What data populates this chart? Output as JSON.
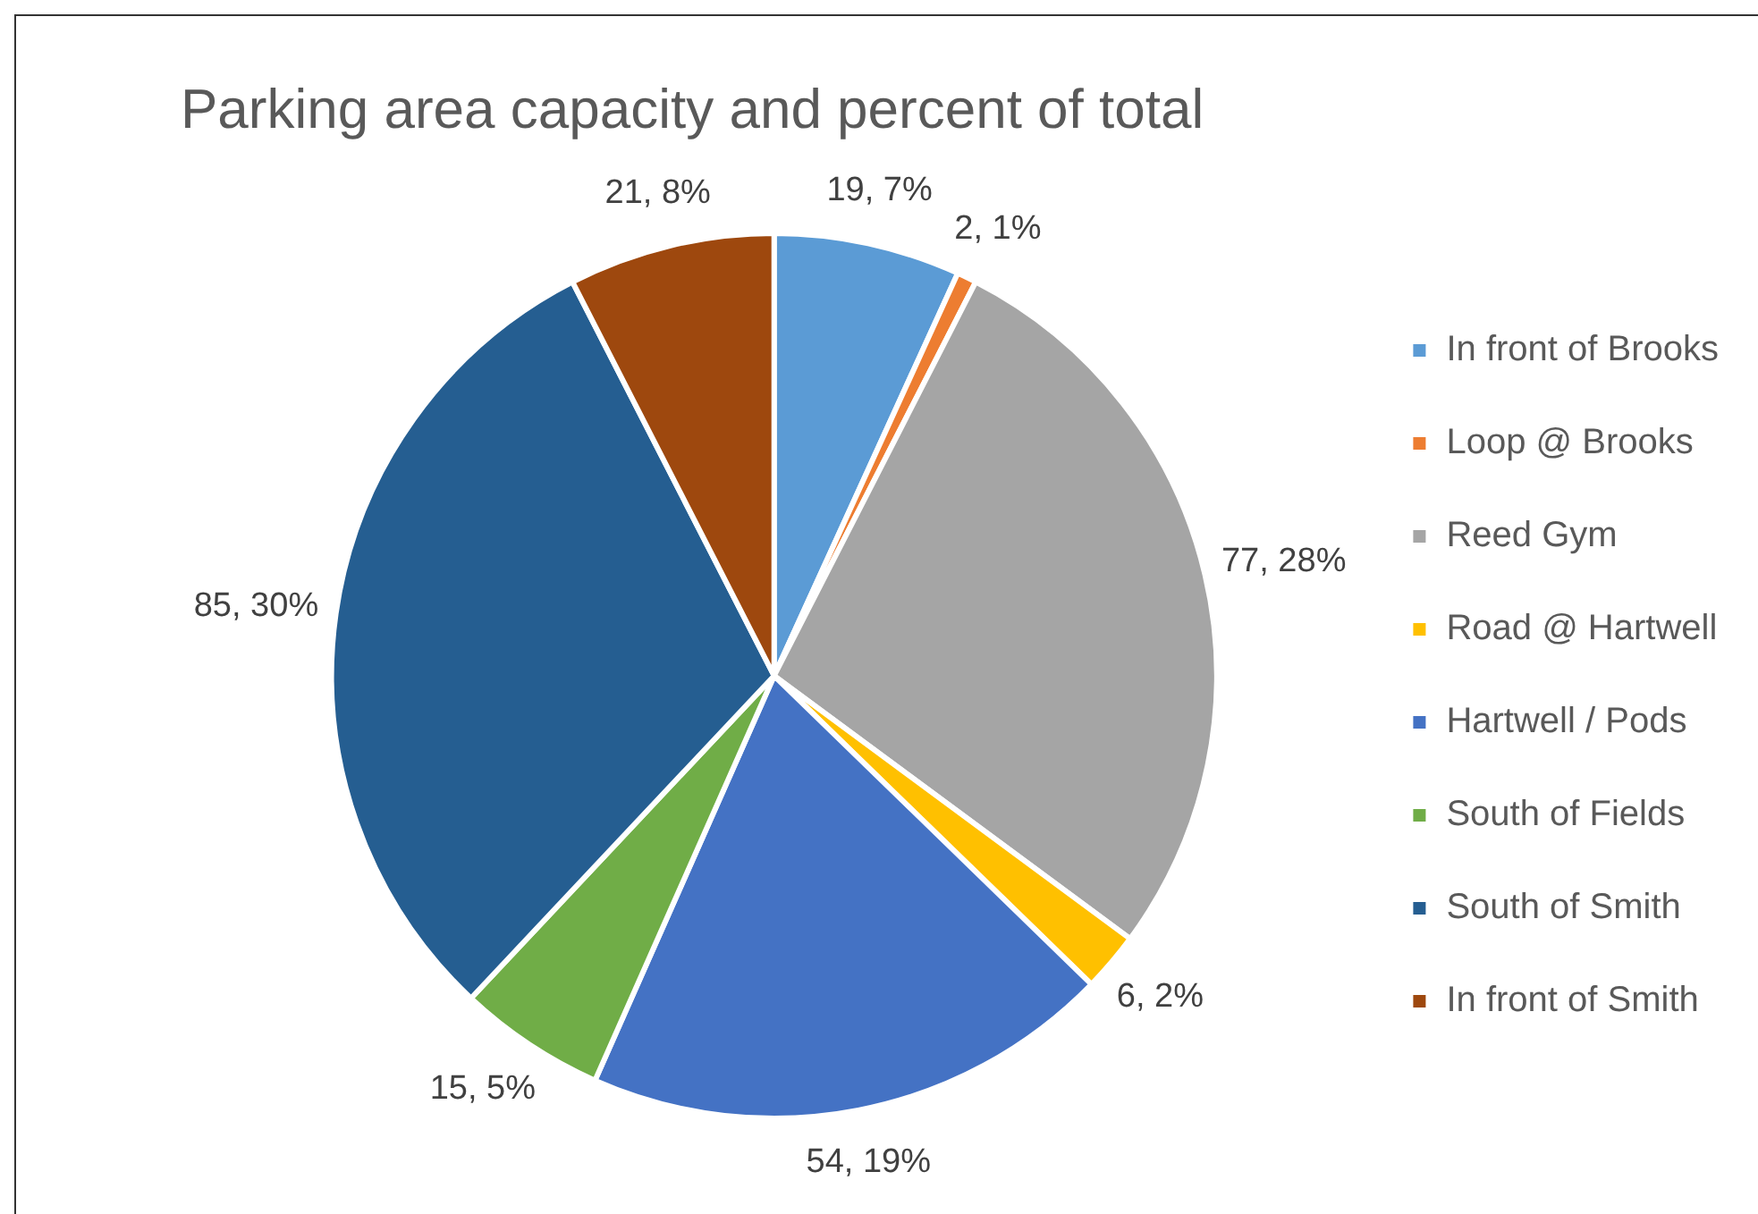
{
  "chart_data": {
    "type": "pie",
    "title": "Parking area capacity and percent of total",
    "categories": [
      "In front of Brooks",
      "Loop @ Brooks",
      "Reed Gym",
      "Road @ Hartwell",
      "Hartwell / Pods",
      "South of Fields",
      "South of Smith",
      "In front of Smith"
    ],
    "values": [
      19,
      2,
      77,
      6,
      54,
      15,
      85,
      21
    ],
    "value_labels": [
      "19, 7%",
      "2, 1%",
      "77, 28%",
      "6, 2%",
      "54, 19%",
      "15, 5%",
      "85, 30%",
      "21, 8%"
    ],
    "colors": [
      "#5b9bd5",
      "#ed7d31",
      "#a5a5a5",
      "#ffc000",
      "#4472c4",
      "#70ad47",
      "#255e91",
      "#9e480e"
    ],
    "legend": "right"
  }
}
